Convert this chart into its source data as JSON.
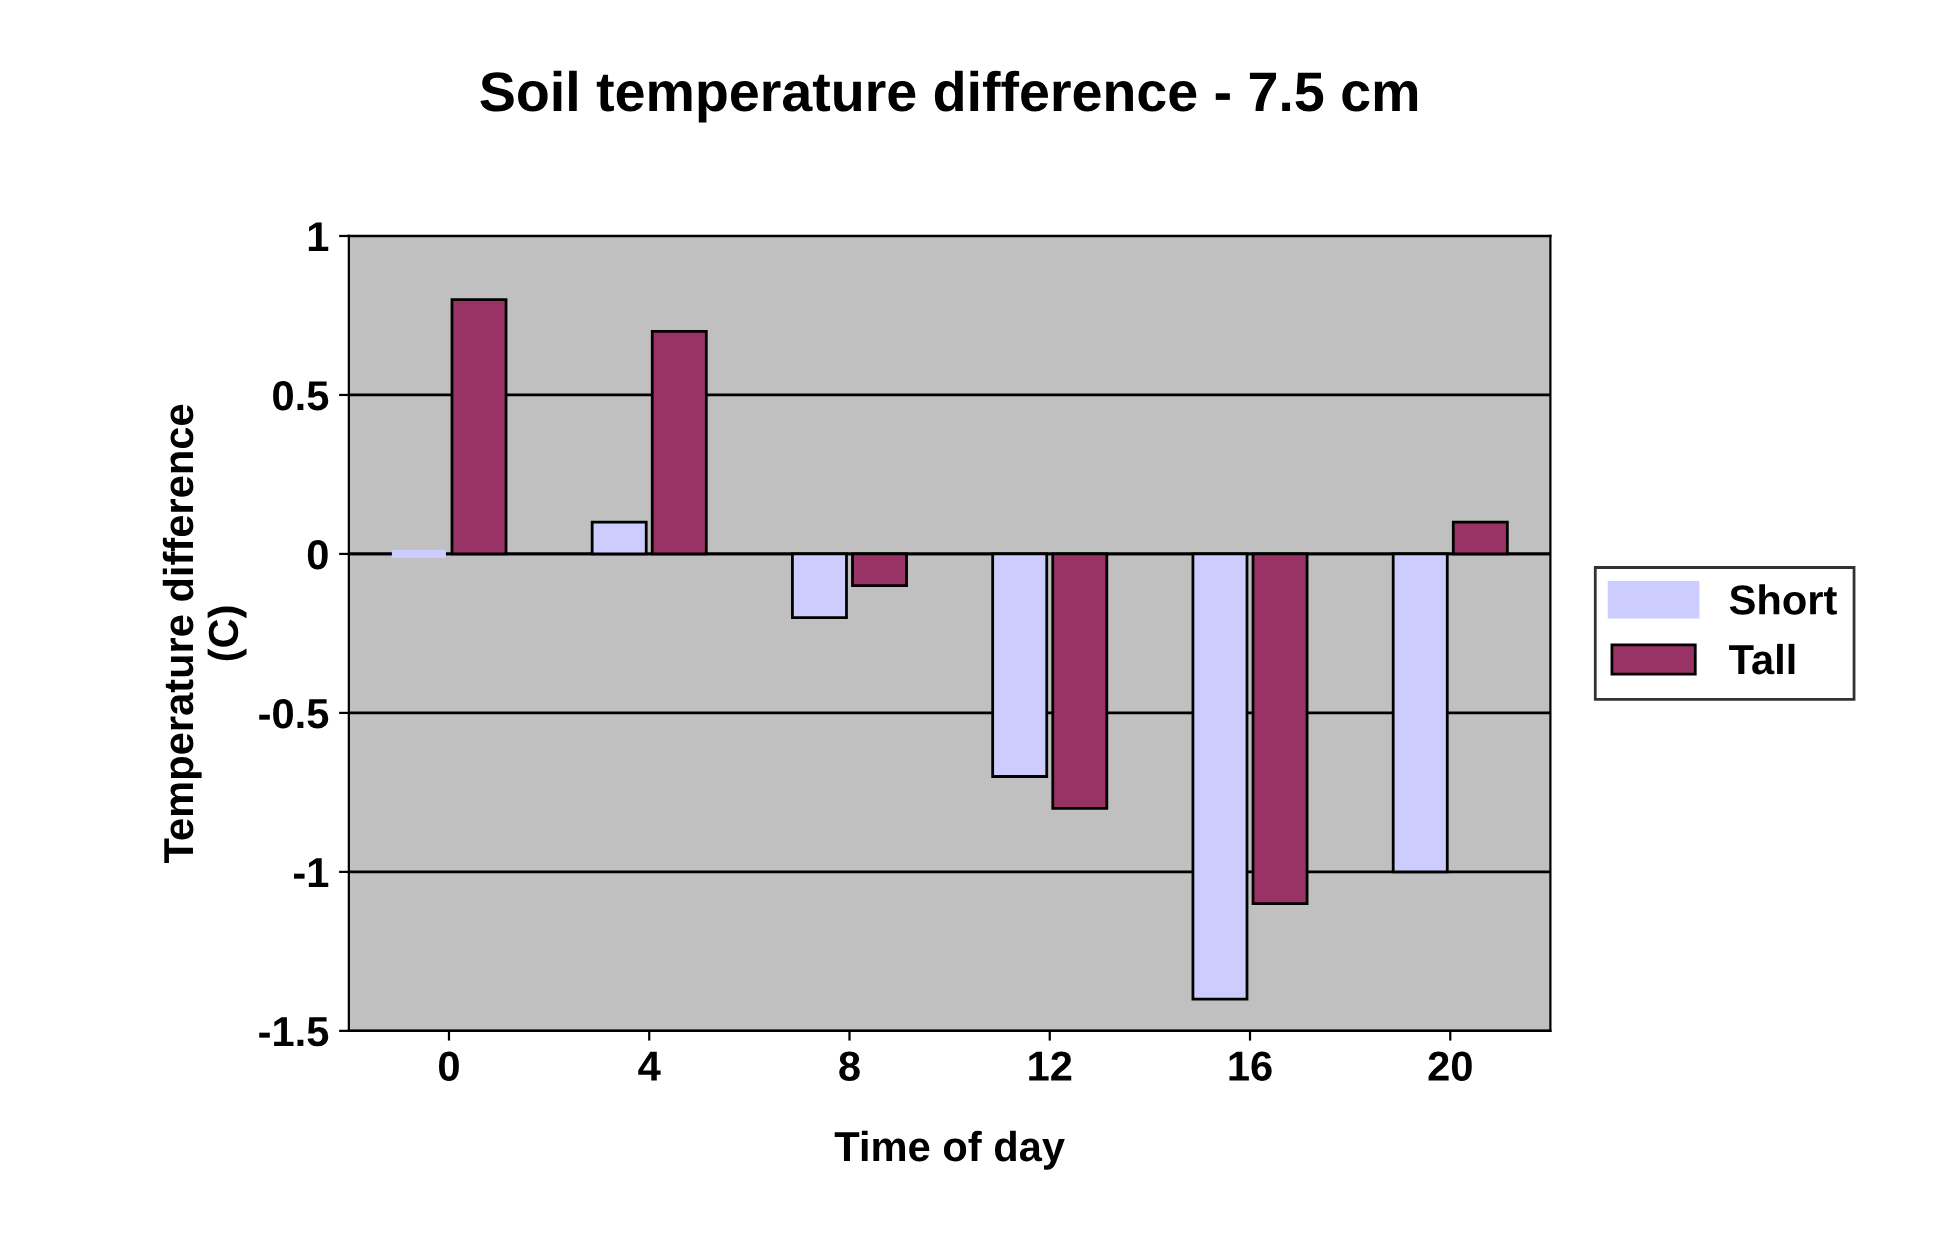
{
  "chart_data": {
    "type": "bar",
    "title": "Soil temperature difference - 7.5 cm",
    "xlabel": "Time of day",
    "ylabel": "Temperature difference\n(C)",
    "categories": [
      "0",
      "4",
      "8",
      "12",
      "16",
      "20"
    ],
    "series": [
      {
        "name": "Short",
        "color": "#ccccff",
        "values": [
          0,
          0.1,
          -0.2,
          -0.7,
          -1.4,
          -1.0
        ]
      },
      {
        "name": "Tall",
        "color": "#993366",
        "values": [
          0.8,
          0.7,
          -0.1,
          -0.8,
          -1.1,
          0.1
        ]
      }
    ],
    "ylim": [
      -1.5,
      1
    ],
    "yticks": [
      {
        "value": -1.5,
        "label": "-1.5"
      },
      {
        "value": -1,
        "label": "-1"
      },
      {
        "value": -0.5,
        "label": "-0.5"
      },
      0,
      0.5,
      1
    ],
    "grid": "y",
    "legend": "right"
  }
}
